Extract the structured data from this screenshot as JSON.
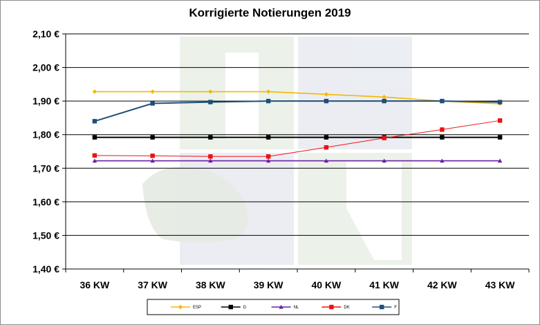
{
  "chart_data": {
    "type": "line",
    "title": "Korrigierte Notierungen 2019",
    "xlabel": "",
    "ylabel": "",
    "categories": [
      "36 KW",
      "37 KW",
      "38 KW",
      "39 KW",
      "40 KW",
      "41 KW",
      "42 KW",
      "43 KW"
    ],
    "y_ticks": [
      "1,40 €",
      "1,50 €",
      "1,60 €",
      "1,70 €",
      "1,80 €",
      "1,90 €",
      "2,00 €",
      "2,10 €"
    ],
    "ylim": [
      1.4,
      2.1
    ],
    "grid": "horizontal",
    "legend_position": "bottom",
    "series": [
      {
        "name": "ESP",
        "color": "#f5b800",
        "marker": "diamond",
        "values": [
          1.928,
          1.928,
          1.928,
          1.928,
          1.92,
          1.912,
          1.9,
          1.892
        ]
      },
      {
        "name": "D",
        "color": "#000000",
        "marker": "square",
        "values": [
          1.792,
          1.792,
          1.792,
          1.792,
          1.792,
          1.792,
          1.792,
          1.792
        ]
      },
      {
        "name": "NL",
        "color": "#6a1fa0",
        "marker": "triangle",
        "values": [
          1.722,
          1.722,
          1.722,
          1.722,
          1.722,
          1.722,
          1.722,
          1.722
        ]
      },
      {
        "name": "DK",
        "color": "#ee1111",
        "marker": "square",
        "values": [
          1.738,
          1.737,
          1.735,
          1.735,
          1.762,
          1.79,
          1.815,
          1.842
        ]
      },
      {
        "name": "F",
        "color": "#1f4e79",
        "marker": "square",
        "values": [
          1.84,
          1.893,
          1.897,
          1.9,
          1.9,
          1.9,
          1.9,
          1.897
        ]
      }
    ]
  }
}
